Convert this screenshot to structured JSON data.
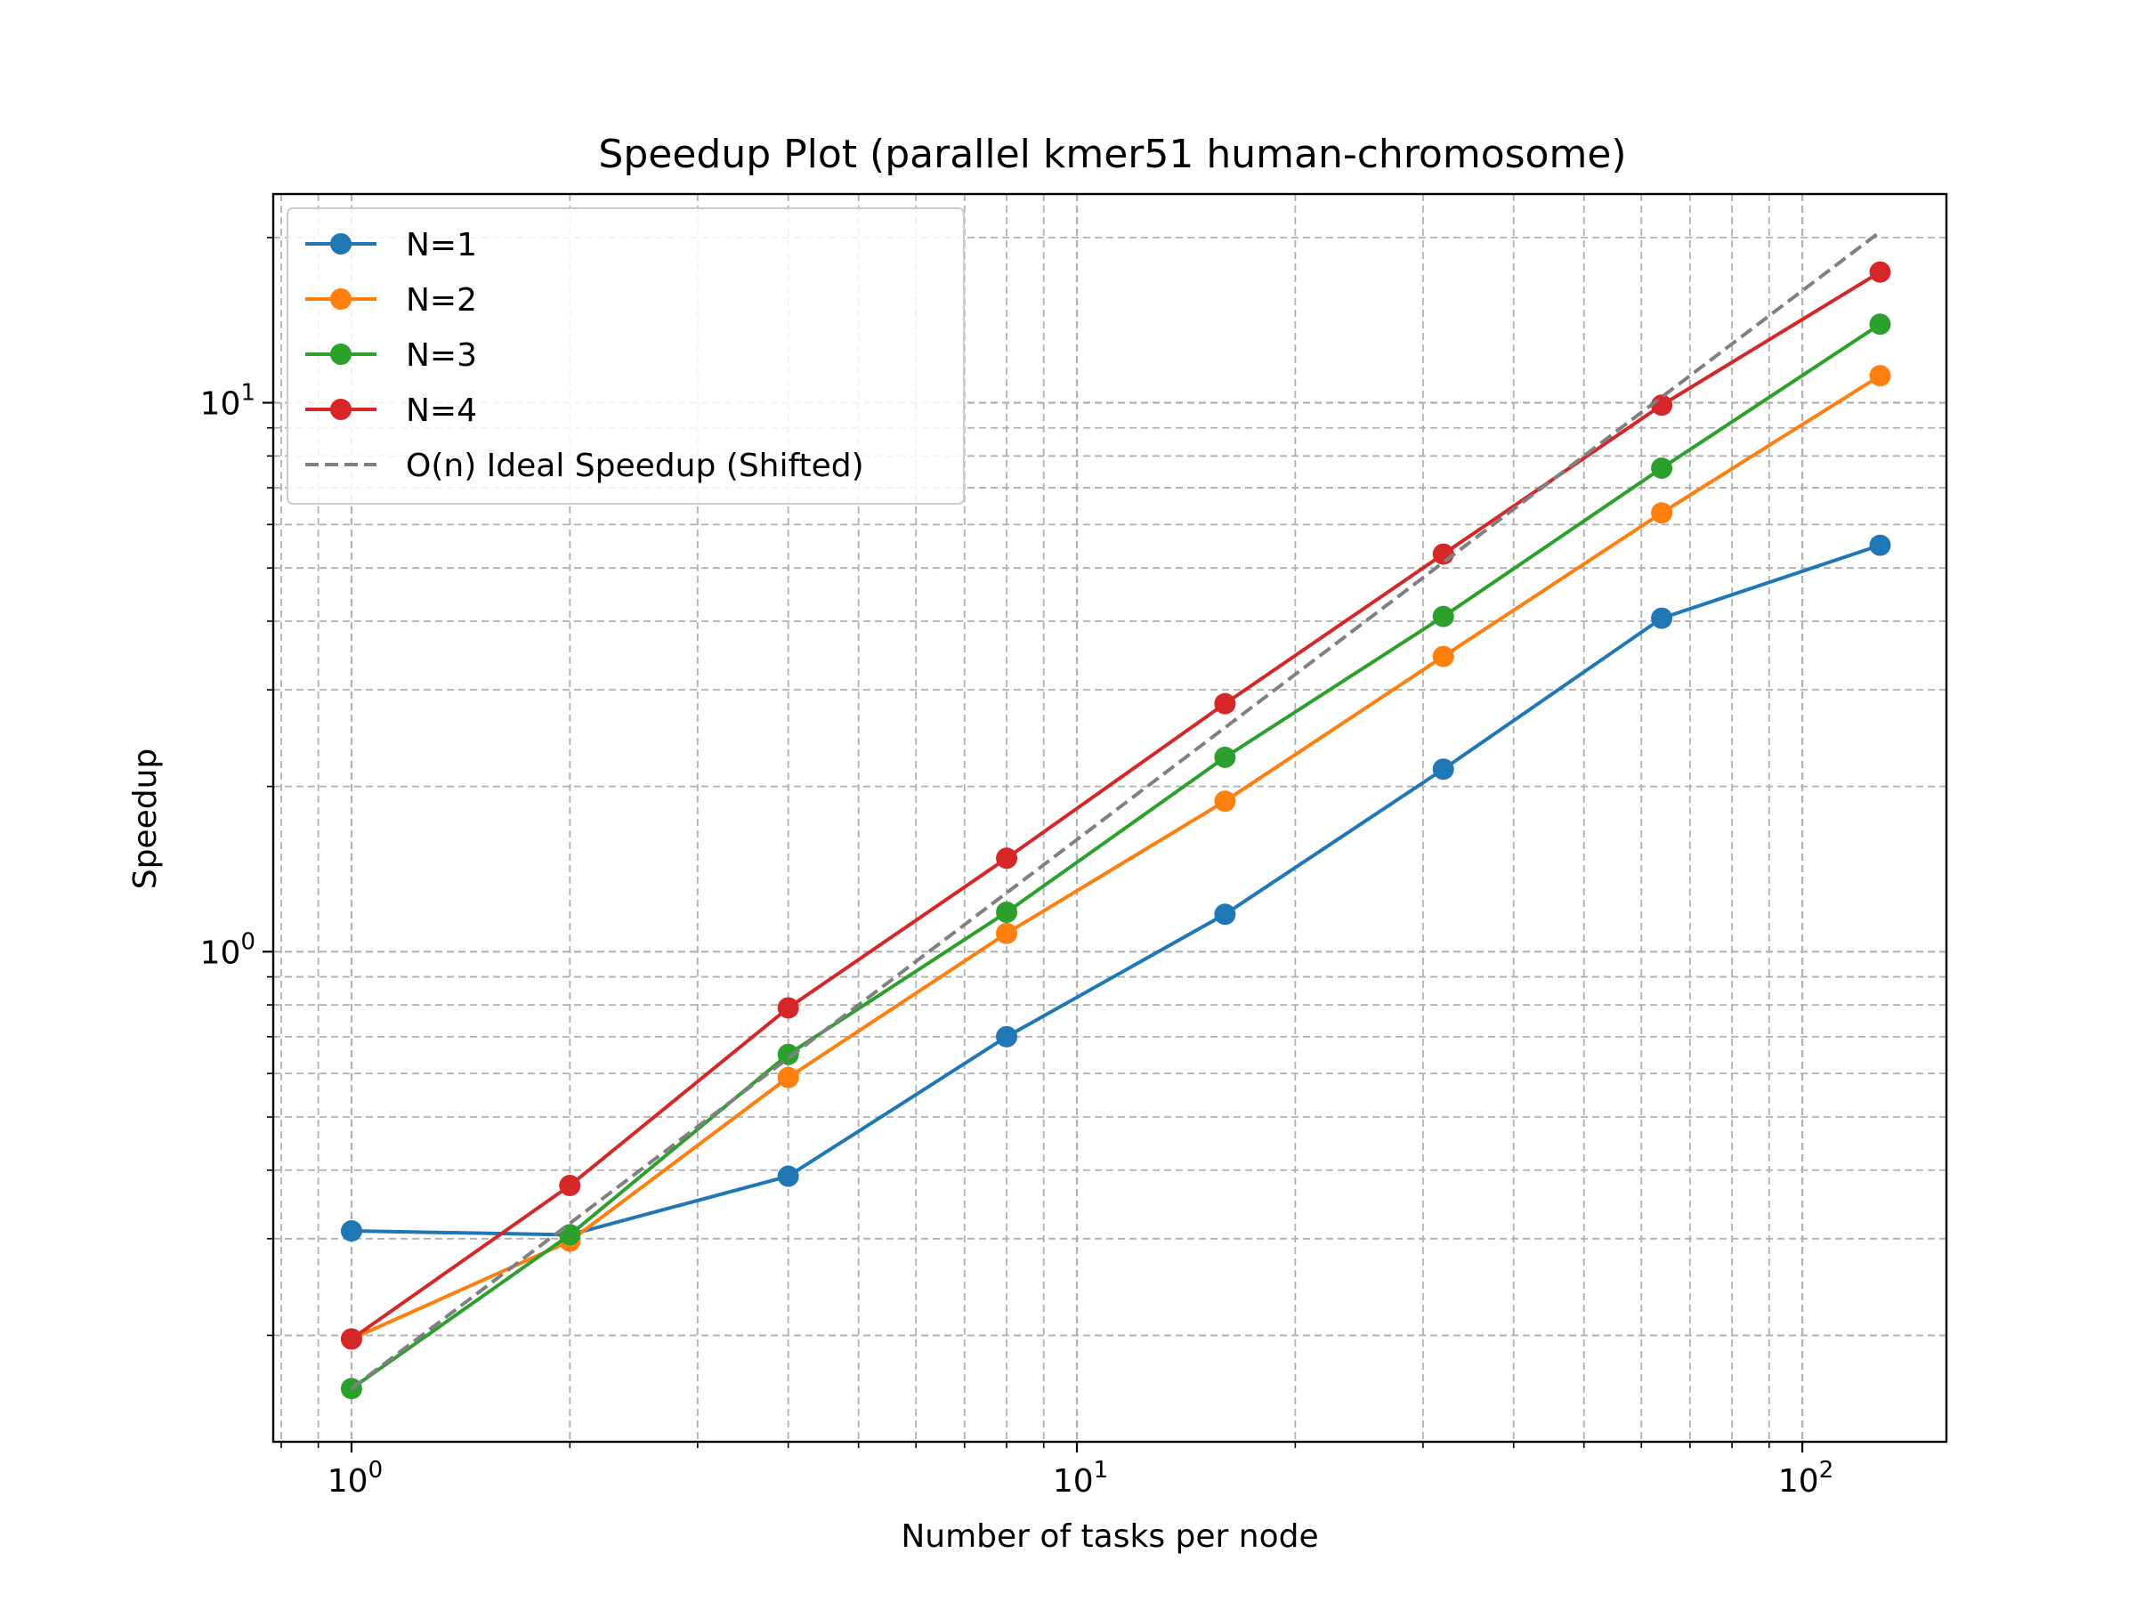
{
  "chart_data": {
    "type": "line",
    "title": "Speedup Plot (parallel kmer51 human-chromosome)",
    "xlabel": "Number of tasks per node",
    "ylabel": "Speedup",
    "xscale": "log",
    "yscale": "log",
    "xlim": [
      0.78,
      158
    ],
    "ylim": [
      0.128,
      24
    ],
    "grid": true,
    "legend_position": "top-left",
    "x_ticks": [
      {
        "value": 1,
        "base": "10",
        "exp": "0"
      },
      {
        "value": 10,
        "base": "10",
        "exp": "1"
      },
      {
        "value": 100,
        "base": "10",
        "exp": "2"
      }
    ],
    "y_ticks": [
      {
        "value": 1,
        "base": "10",
        "exp": "0"
      },
      {
        "value": 10,
        "base": "10",
        "exp": "1"
      }
    ],
    "x": [
      1,
      2,
      4,
      8,
      16,
      32,
      64,
      128
    ],
    "series": [
      {
        "name": "N=1",
        "color": "#1f77b4",
        "style": "solid",
        "marker": "circle",
        "values": [
          0.31,
          0.305,
          0.39,
          0.7,
          1.17,
          2.15,
          4.05,
          5.5
        ]
      },
      {
        "name": "N=2",
        "color": "#ff7f0e",
        "style": "solid",
        "marker": "circle",
        "values": [
          0.197,
          0.297,
          0.59,
          1.08,
          1.88,
          3.45,
          6.3,
          11.2
        ]
      },
      {
        "name": "N=3",
        "color": "#2ca02c",
        "style": "solid",
        "marker": "circle",
        "values": [
          0.16,
          0.305,
          0.65,
          1.18,
          2.26,
          4.08,
          7.6,
          13.9
        ]
      },
      {
        "name": "N=4",
        "color": "#d62728",
        "style": "solid",
        "marker": "circle",
        "values": [
          0.197,
          0.375,
          0.79,
          1.48,
          2.83,
          5.3,
          9.9,
          17.3
        ]
      },
      {
        "name": "O(n) Ideal Speedup (Shifted)",
        "color": "#808080",
        "style": "dashed",
        "marker": "none",
        "values": [
          0.16,
          0.32,
          0.64,
          1.28,
          2.56,
          5.12,
          10.24,
          20.48
        ]
      }
    ]
  }
}
